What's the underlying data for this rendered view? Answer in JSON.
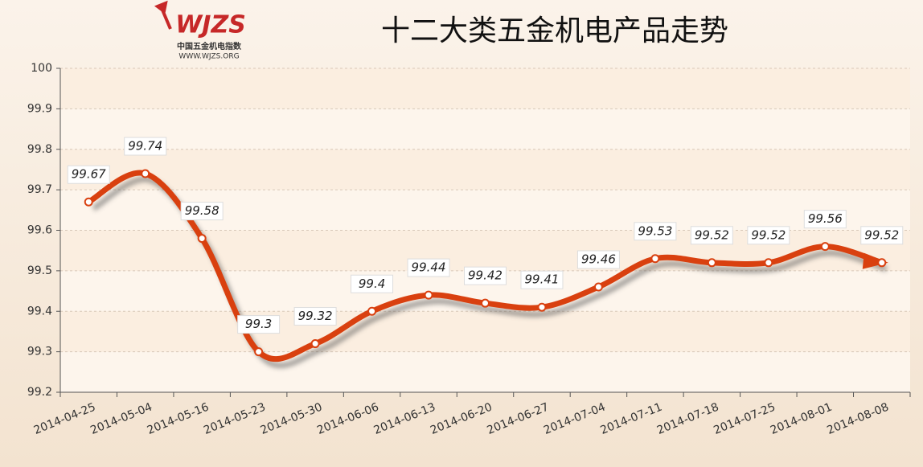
{
  "logo": {
    "mark": "WJZS",
    "name": "中国五金机电指数",
    "url": "WWW.WJZS.ORG"
  },
  "chart_data": {
    "type": "line",
    "title": "十二大类五金机电产品走势",
    "categories": [
      "2014-04-25",
      "2014-05-04",
      "2014-05-16",
      "2014-05-23",
      "2014-05-30",
      "2014-06-06",
      "2014-06-13",
      "2014-06-20",
      "2014-06-27",
      "2014-07-04",
      "2014-07-11",
      "2014-07-18",
      "2014-07-25",
      "2014-08-01",
      "2014-08-08"
    ],
    "values": [
      99.67,
      99.74,
      99.58,
      99.3,
      99.32,
      99.4,
      99.44,
      99.42,
      99.41,
      99.46,
      99.53,
      99.52,
      99.52,
      99.56,
      99.52
    ],
    "color": "#d9400f",
    "ylim": [
      99.2,
      100
    ],
    "yticks": [
      99.2,
      99.3,
      99.4,
      99.5,
      99.6,
      99.7,
      99.8,
      99.9,
      100
    ],
    "grid": true
  }
}
